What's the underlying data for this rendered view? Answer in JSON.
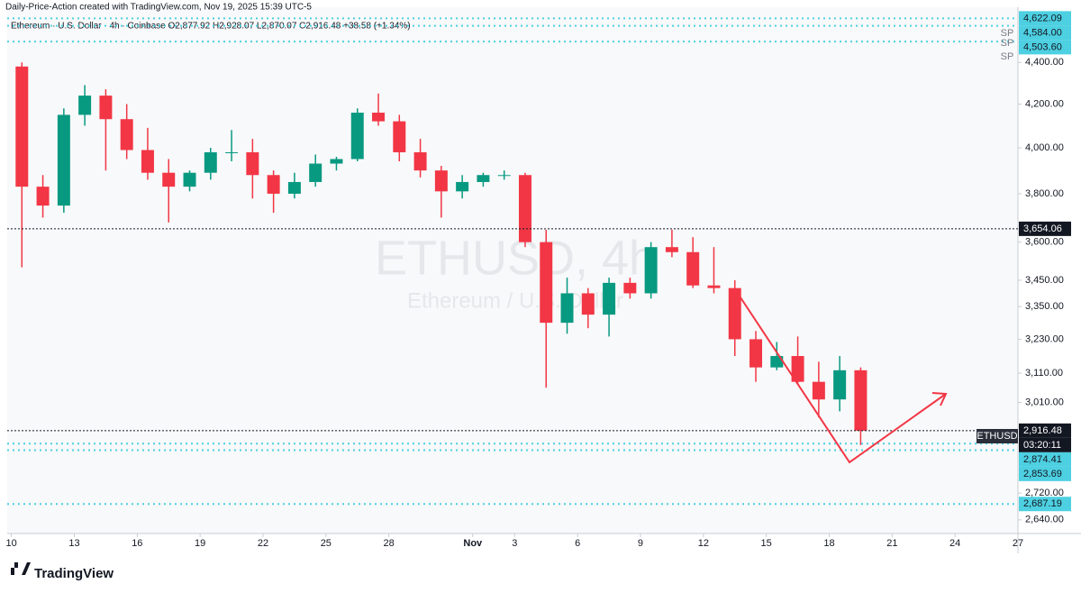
{
  "chart_data": {
    "type": "candlestick",
    "header": "Daily-Price-Action created with TradingView.com, Nov 19, 2025 15:39 UTC-5",
    "legend_text": "Ethereum · U.S. Dollar · 4h · Coinbase  O2,877.92  H2,928.07  L2,870.07  C2,916.48  +38.58 (+1.34%)",
    "watermark": "ETHUSD, 4h",
    "watermark_sub": "Ethereum / U.S. Dollar",
    "brand": "TradingView",
    "symbol": "ETHUSD",
    "countdown": "03:20:11",
    "markers": [
      "SP",
      "SP",
      "SP"
    ],
    "up_color": "#089981",
    "down_color": "#f23645",
    "log": true,
    "x": [
      0,
      1,
      2,
      3,
      4,
      5,
      6,
      7,
      8,
      9,
      10,
      11,
      12,
      13,
      14,
      15,
      16,
      17,
      18,
      19,
      20,
      21,
      22,
      23,
      24,
      25,
      26,
      27,
      28,
      29,
      30,
      31,
      32,
      33,
      34,
      35,
      36,
      37,
      38,
      39,
      40
    ],
    "open": [
      4380,
      3830,
      3750,
      4150,
      4240,
      4130,
      3990,
      3890,
      3830,
      3890,
      3980,
      3980,
      3880,
      3800,
      3850,
      3930,
      3950,
      4160,
      4120,
      3980,
      3900,
      3810,
      3850,
      3880,
      3880,
      3600,
      3290,
      3400,
      3320,
      3440,
      3400,
      3580,
      3560,
      3430,
      3420,
      3230,
      3130,
      3170,
      3080,
      3020,
      3120
    ],
    "high": [
      4400,
      3880,
      4180,
      4290,
      4270,
      4200,
      4090,
      3950,
      3900,
      4000,
      4080,
      4040,
      3900,
      3890,
      3970,
      3960,
      4180,
      4250,
      4150,
      4040,
      3920,
      3880,
      3890,
      3900,
      3890,
      3650,
      3460,
      3420,
      3460,
      3460,
      3600,
      3650,
      3620,
      3580,
      3450,
      3260,
      3220,
      3240,
      3150,
      3170,
      3130
    ],
    "low": [
      3500,
      3700,
      3720,
      4100,
      3900,
      3950,
      3860,
      3680,
      3810,
      3860,
      3940,
      3780,
      3720,
      3780,
      3830,
      3900,
      3940,
      4100,
      3940,
      3870,
      3700,
      3780,
      3830,
      3860,
      3580,
      3060,
      3250,
      3270,
      3240,
      3380,
      3380,
      3540,
      3420,
      3400,
      3170,
      3080,
      3120,
      3070,
      2960,
      2980,
      2870
    ],
    "close": [
      3830,
      3750,
      4150,
      4240,
      4130,
      3990,
      3890,
      3830,
      3890,
      3980,
      3980,
      3880,
      3800,
      3850,
      3930,
      3950,
      4160,
      4120,
      3980,
      3900,
      3810,
      3850,
      3880,
      3880,
      3600,
      3290,
      3400,
      3320,
      3440,
      3400,
      3580,
      3560,
      3430,
      3420,
      3230,
      3130,
      3170,
      3080,
      3020,
      3120,
      2916.48
    ],
    "xlim": [
      -0.2,
      48
    ],
    "xticks": [
      {
        "value": 0,
        "label": "10"
      },
      {
        "value": 3,
        "label": "13"
      },
      {
        "value": 6,
        "label": "16"
      },
      {
        "value": 9,
        "label": "19"
      },
      {
        "value": 12,
        "label": "22"
      },
      {
        "value": 15,
        "label": "25"
      },
      {
        "value": 18,
        "label": "28"
      },
      {
        "value": 22,
        "label": "Nov"
      },
      {
        "value": 24,
        "label": "3"
      },
      {
        "value": 27,
        "label": "6"
      },
      {
        "value": 30,
        "label": "9"
      },
      {
        "value": 33,
        "label": "12"
      },
      {
        "value": 36,
        "label": "15"
      },
      {
        "value": 39,
        "label": "18"
      },
      {
        "value": 42,
        "label": "21"
      },
      {
        "value": 45,
        "label": "24"
      },
      {
        "value": 48,
        "label": "27"
      }
    ],
    "ylim": [
      2600,
      4680
    ],
    "yticks": [
      {
        "value": 4400,
        "label": "4,400.00"
      },
      {
        "value": 4200,
        "label": "4,200.00"
      },
      {
        "value": 4000,
        "label": "4,000.00"
      },
      {
        "value": 3800,
        "label": "3,800.00"
      },
      {
        "value": 3600,
        "label": "3,600.00"
      },
      {
        "value": 3450,
        "label": "3,450.00"
      },
      {
        "value": 3350,
        "label": "3,350.00"
      },
      {
        "value": 3230,
        "label": "3,230.00"
      },
      {
        "value": 3110,
        "label": "3,110.00"
      },
      {
        "value": 3010,
        "label": "3,010.00"
      },
      {
        "value": 2720,
        "label": "2,720.00"
      },
      {
        "value": 2640,
        "label": "2,640.00"
      }
    ],
    "levels": [
      {
        "value": 4622.09,
        "label": "4,622.09",
        "color": "#4dd0e1"
      },
      {
        "value": 4584,
        "label": "4,584.00",
        "color": "#4dd0e1"
      },
      {
        "value": 4503.6,
        "label": "4,503.60",
        "color": "#4dd0e1"
      },
      {
        "value": 3654.06,
        "label": "3,654.06",
        "color": "#131722"
      },
      {
        "value": 2916.48,
        "label": "2,916.48",
        "color": "#131722"
      },
      {
        "value": 2874.41,
        "label": "2,874.41",
        "color": "#4dd0e1"
      },
      {
        "value": 2853.69,
        "label": "2,853.69",
        "color": "#4dd0e1"
      },
      {
        "value": 2687.19,
        "label": "2,687.19",
        "color": "#4dd0e1"
      }
    ]
  }
}
